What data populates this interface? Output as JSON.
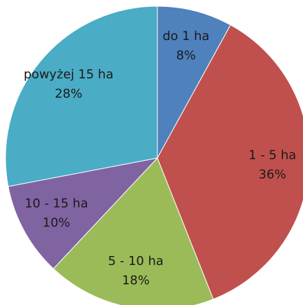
{
  "chart_data": {
    "type": "pie",
    "categories": [
      "do 1 ha",
      "1 - 5 ha",
      "5 - 10 ha",
      "10 - 15 ha",
      "powyżej 15 ha"
    ],
    "values": [
      8,
      36,
      18,
      10,
      28
    ],
    "value_labels": [
      "8%",
      "36%",
      "18%",
      "10%",
      "28%"
    ],
    "colors": [
      "#4f81bd",
      "#c0504d",
      "#9bbb59",
      "#8064a2",
      "#4bacc6"
    ]
  }
}
